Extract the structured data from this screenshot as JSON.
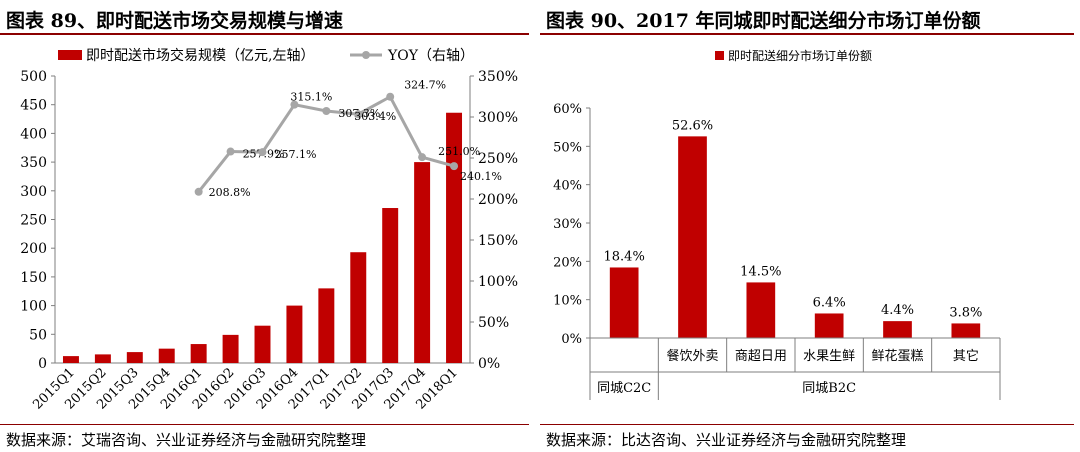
{
  "left": {
    "title": "图表 89、即时配送市场交易规模与增速",
    "source": "数据来源：艾瑞咨询、兴业证券经济与金融研究院整理"
  },
  "right": {
    "title": "图表 90、2017 年同城即时配送细分市场订单份额",
    "source": "数据来源：比达咨询、兴业证券经济与金融研究院整理"
  },
  "colors": {
    "bar": "#c00000",
    "line": "#a6a6a6",
    "rule": "#8b0000"
  },
  "chart_data": [
    {
      "type": "bar+line",
      "categories": [
        "2015Q1",
        "2015Q2",
        "2015Q3",
        "2015Q4",
        "2016Q1",
        "2016Q2",
        "2016Q3",
        "2016Q4",
        "2017Q1",
        "2017Q2",
        "2017Q3",
        "2017Q4",
        "2018Q1"
      ],
      "series": [
        {
          "name": "即时配送市场交易规模（亿元,左轴）",
          "type": "bar",
          "axis": "left",
          "values": [
            12,
            15,
            19,
            25,
            33,
            49,
            65,
            100,
            130,
            193,
            270,
            350,
            436
          ]
        },
        {
          "name": "YOY（右轴）",
          "type": "line",
          "axis": "right",
          "values": [
            null,
            null,
            null,
            null,
            208.8,
            257.9,
            257.1,
            315.1,
            307.3,
            303.4,
            324.7,
            251.0,
            240.1
          ],
          "labels": [
            "",
            "",
            "",
            "",
            "208.8%",
            "257.9%",
            "257.1%",
            "315.1%",
            "307.3%",
            "303.4%",
            "324.7%",
            "251.0%",
            "240.1%"
          ]
        }
      ],
      "y_left": {
        "range": [
          0,
          500
        ],
        "ticks": [
          "0",
          "50",
          "100",
          "150",
          "200",
          "250",
          "300",
          "350",
          "400",
          "450",
          "500"
        ]
      },
      "y_right": {
        "range": [
          0,
          350
        ],
        "ticks": [
          "0%",
          "50%",
          "100%",
          "150%",
          "200%",
          "250%",
          "300%",
          "350%"
        ]
      },
      "legend": "top",
      "grid": false
    },
    {
      "type": "bar",
      "categories": [
        "同城C2C",
        "餐饮外卖",
        "商超日用",
        "水果生鲜",
        "鲜花蛋糕",
        "其它"
      ],
      "values": [
        18.4,
        52.6,
        14.5,
        6.4,
        4.4,
        3.8
      ],
      "labels": [
        "18.4%",
        "52.6%",
        "14.5%",
        "6.4%",
        "4.4%",
        "3.8%"
      ],
      "groups": [
        {
          "name": "同城C2C",
          "span": [
            0,
            0
          ]
        },
        {
          "name": "同城B2C",
          "span": [
            1,
            5
          ]
        }
      ],
      "series_name": "即时配送细分市场订单份额",
      "ylim": [
        0,
        60
      ],
      "y_ticks": [
        "0%",
        "10%",
        "20%",
        "30%",
        "40%",
        "50%",
        "60%"
      ],
      "legend": "top",
      "grid": false
    }
  ]
}
